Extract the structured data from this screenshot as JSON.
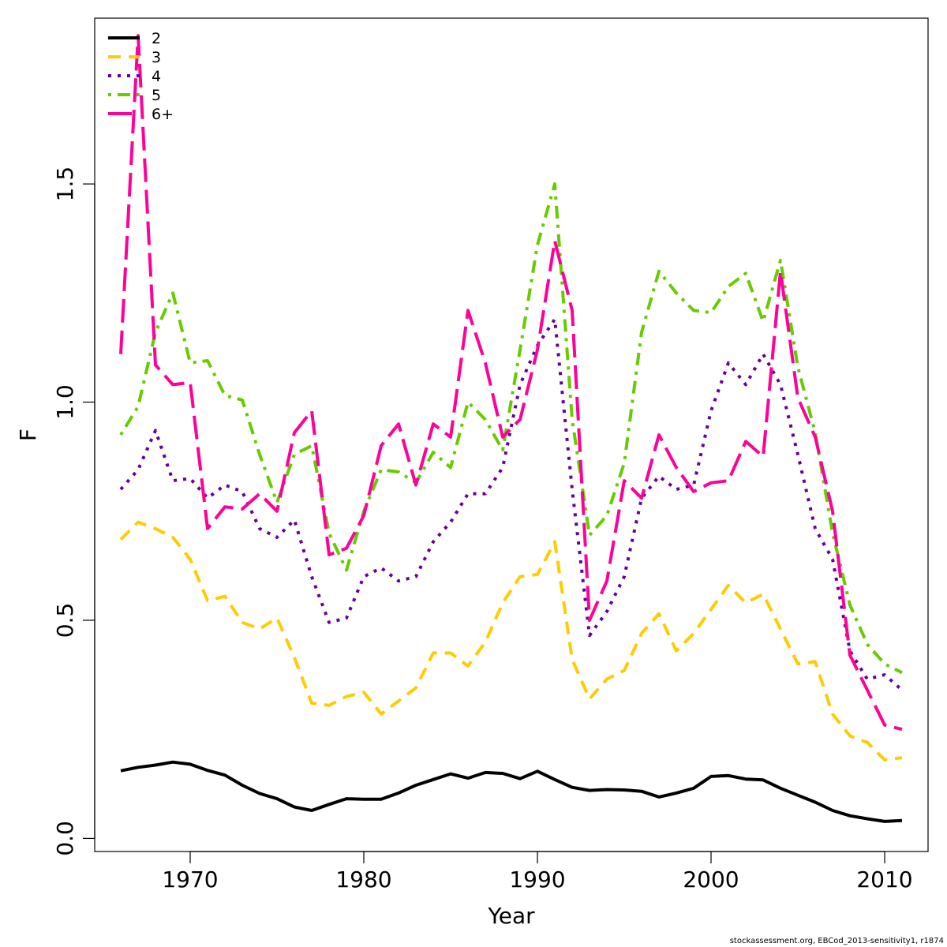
{
  "chart_data": {
    "type": "line",
    "title": "",
    "xlabel": "Year",
    "ylabel": "F",
    "xlim": [
      1964.5,
      2012.5
    ],
    "ylim": [
      -0.03,
      1.88
    ],
    "xticks": [
      1970,
      1980,
      1990,
      2000,
      2010
    ],
    "yticks": [
      0.0,
      0.5,
      1.0,
      1.5
    ],
    "xtick_labels": [
      "1970",
      "1980",
      "1990",
      "2000",
      "2010"
    ],
    "ytick_labels": [
      "0.0",
      "0.5",
      "1.0",
      "1.5"
    ],
    "grid": false,
    "legend_position": "top-left",
    "x": [
      1966,
      1967,
      1968,
      1969,
      1970,
      1971,
      1972,
      1973,
      1974,
      1975,
      1976,
      1977,
      1978,
      1979,
      1980,
      1981,
      1982,
      1983,
      1984,
      1985,
      1986,
      1987,
      1988,
      1989,
      1990,
      1991,
      1992,
      1993,
      1994,
      1995,
      1996,
      1997,
      1998,
      1999,
      2000,
      2001,
      2002,
      2003,
      2004,
      2005,
      2006,
      2007,
      2008,
      2009,
      2010,
      2011
    ],
    "series": [
      {
        "name": "2",
        "color": "#000000",
        "dash": "solid",
        "values": [
          0.155,
          0.163,
          0.168,
          0.175,
          0.17,
          0.156,
          0.145,
          0.122,
          0.103,
          0.091,
          0.072,
          0.064,
          0.078,
          0.091,
          0.09,
          0.09,
          0.104,
          0.122,
          0.135,
          0.148,
          0.138,
          0.151,
          0.149,
          0.137,
          0.154,
          0.135,
          0.117,
          0.11,
          0.112,
          0.111,
          0.108,
          0.095,
          0.104,
          0.115,
          0.142,
          0.144,
          0.136,
          0.134,
          0.115,
          0.099,
          0.083,
          0.064,
          0.052,
          0.045,
          0.039,
          0.041
        ]
      },
      {
        "name": "3",
        "color": "#FFCC00",
        "dash": "dashed",
        "values": [
          0.685,
          0.725,
          0.71,
          0.69,
          0.64,
          0.545,
          0.555,
          0.495,
          0.48,
          0.505,
          0.415,
          0.31,
          0.305,
          0.325,
          0.335,
          0.285,
          0.315,
          0.345,
          0.425,
          0.425,
          0.395,
          0.45,
          0.54,
          0.6,
          0.605,
          0.68,
          0.41,
          0.32,
          0.365,
          0.385,
          0.47,
          0.515,
          0.43,
          0.47,
          0.525,
          0.58,
          0.54,
          0.56,
          0.48,
          0.4,
          0.405,
          0.285,
          0.235,
          0.22,
          0.18,
          0.185
        ]
      },
      {
        "name": "4",
        "color": "#660099",
        "dash": "dotted",
        "values": [
          0.8,
          0.845,
          0.935,
          0.82,
          0.825,
          0.78,
          0.81,
          0.795,
          0.71,
          0.69,
          0.73,
          0.6,
          0.495,
          0.505,
          0.6,
          0.62,
          0.59,
          0.6,
          0.68,
          0.725,
          0.79,
          0.79,
          0.85,
          1.04,
          1.13,
          1.19,
          0.8,
          0.465,
          0.52,
          0.6,
          0.78,
          0.83,
          0.8,
          0.81,
          0.98,
          1.09,
          1.04,
          1.11,
          1.04,
          0.88,
          0.71,
          0.64,
          0.43,
          0.365,
          0.375,
          0.34
        ]
      },
      {
        "name": "5",
        "color": "#66CC00",
        "dash": "dotdash",
        "values": [
          0.925,
          0.99,
          1.16,
          1.25,
          1.09,
          1.095,
          1.015,
          1.005,
          0.88,
          0.77,
          0.88,
          0.9,
          0.7,
          0.615,
          0.75,
          0.845,
          0.84,
          0.815,
          0.885,
          0.85,
          1.0,
          0.96,
          0.89,
          1.12,
          1.36,
          1.5,
          0.96,
          0.695,
          0.74,
          0.86,
          1.16,
          1.3,
          1.25,
          1.21,
          1.205,
          1.265,
          1.295,
          1.185,
          1.325,
          1.08,
          0.93,
          0.7,
          0.535,
          0.445,
          0.4,
          0.38
        ]
      },
      {
        "name": "6+",
        "color": "#FF0099",
        "dash": "longdash",
        "values": [
          1.11,
          1.84,
          1.085,
          1.04,
          1.045,
          0.71,
          0.76,
          0.755,
          0.79,
          0.75,
          0.93,
          0.98,
          0.65,
          0.665,
          0.74,
          0.9,
          0.95,
          0.81,
          0.95,
          0.92,
          1.21,
          1.09,
          0.92,
          0.96,
          1.12,
          1.37,
          1.21,
          0.5,
          0.59,
          0.82,
          0.78,
          0.925,
          0.85,
          0.795,
          0.815,
          0.82,
          0.91,
          0.875,
          1.3,
          1.01,
          0.92,
          0.75,
          0.42,
          0.34,
          0.26,
          0.25
        ]
      }
    ]
  },
  "footer": {
    "note": "stockassessment.org, EBCod_2013-sensitivity1, r1874"
  }
}
